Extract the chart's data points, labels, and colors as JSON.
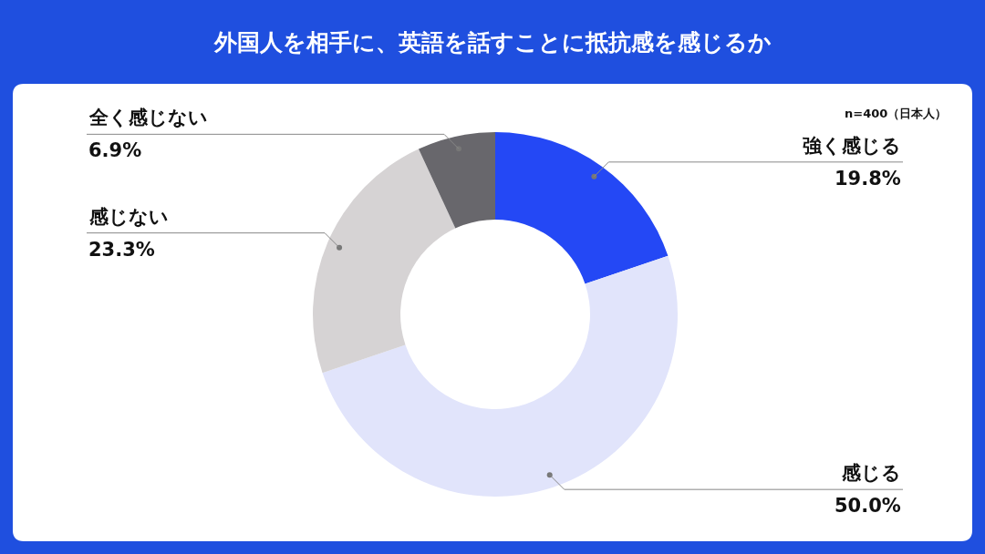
{
  "chart_data": {
    "type": "donut",
    "title": "外国人を相手に、英語を話すことに抵抗感を感じるか",
    "categories": [
      "強く感じる",
      "感じる",
      "感じない",
      "全く感じない"
    ],
    "values": [
      19.8,
      50.0,
      23.3,
      6.9
    ],
    "value_labels": [
      "19.8%",
      "50.0%",
      "23.3%",
      "6.9%"
    ],
    "colors": [
      "#2448f5",
      "#e1e4fb",
      "#d6d3d4",
      "#68676c"
    ],
    "annotations": [
      "n=400（日本人）"
    ],
    "legend": false
  }
}
